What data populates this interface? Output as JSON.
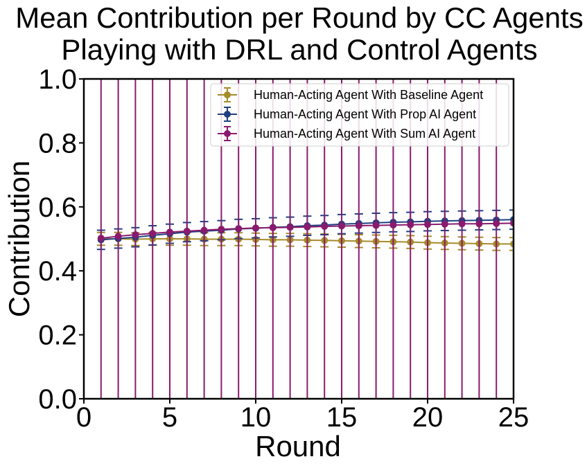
{
  "chart_data": {
    "type": "line",
    "title_lines": [
      "Mean Contribution per Round by CC Agents",
      "Playing with DRL and Control Agents"
    ],
    "xlabel": "Round",
    "ylabel": "Contribution",
    "xlim": [
      0,
      25
    ],
    "ylim": [
      0.0,
      1.0
    ],
    "xticks": [
      0,
      5,
      10,
      15,
      20,
      25
    ],
    "xtick_labels": [
      "0",
      "5",
      "10",
      "15",
      "20",
      "25"
    ],
    "yticks": [
      0.0,
      0.2,
      0.4,
      0.6,
      0.8,
      1.0
    ],
    "ytick_labels": [
      "0.0",
      "0.2",
      "0.4",
      "0.6",
      "0.8",
      "1.0"
    ],
    "grid": false,
    "legend_position": "top-right",
    "x": [
      1,
      2,
      3,
      4,
      5,
      6,
      7,
      8,
      9,
      10,
      11,
      12,
      13,
      14,
      15,
      16,
      17,
      18,
      19,
      20,
      21,
      22,
      23,
      24,
      25
    ],
    "series": [
      {
        "name": "Human-Acting Agent With Baseline Agent",
        "color": "#a68b29",
        "values": [
          0.5,
          0.5,
          0.499,
          0.5,
          0.5,
          0.5,
          0.499,
          0.499,
          0.499,
          0.498,
          0.497,
          0.497,
          0.496,
          0.495,
          0.494,
          0.493,
          0.492,
          0.491,
          0.49,
          0.488,
          0.487,
          0.486,
          0.485,
          0.484,
          0.484
        ],
        "error": [
          0.02,
          0.02,
          0.02,
          0.02,
          0.02,
          0.02,
          0.02,
          0.02,
          0.02,
          0.02,
          0.02,
          0.02,
          0.02,
          0.02,
          0.02,
          0.02,
          0.02,
          0.02,
          0.02,
          0.02,
          0.02,
          0.02,
          0.02,
          0.02,
          0.02
        ]
      },
      {
        "name": "Human-Acting Agent With Prop AI Agent",
        "color": "#1f3f7f",
        "values": [
          0.497,
          0.501,
          0.505,
          0.511,
          0.516,
          0.521,
          0.524,
          0.527,
          0.531,
          0.533,
          0.536,
          0.538,
          0.541,
          0.543,
          0.546,
          0.548,
          0.55,
          0.552,
          0.553,
          0.555,
          0.556,
          0.557,
          0.558,
          0.559,
          0.56
        ],
        "error": [
          0.03,
          0.03,
          0.03,
          0.03,
          0.03,
          0.03,
          0.03,
          0.03,
          0.03,
          0.03,
          0.03,
          0.03,
          0.03,
          0.03,
          0.03,
          0.03,
          0.03,
          0.03,
          0.03,
          0.03,
          0.03,
          0.03,
          0.03,
          0.03,
          0.03
        ]
      },
      {
        "name": "Human-Acting Agent With Sum AI Agent",
        "color": "#8a1a6e",
        "values": [
          0.502,
          0.508,
          0.513,
          0.517,
          0.521,
          0.524,
          0.527,
          0.53,
          0.532,
          0.534,
          0.535,
          0.536,
          0.537,
          0.539,
          0.54,
          0.541,
          0.542,
          0.543,
          0.544,
          0.545,
          0.546,
          0.547,
          0.547,
          0.548,
          0.549
        ],
        "error": [
          0.6,
          0.6,
          0.6,
          0.6,
          0.6,
          0.6,
          0.6,
          0.6,
          0.6,
          0.6,
          0.6,
          0.6,
          0.6,
          0.6,
          0.6,
          0.6,
          0.6,
          0.6,
          0.6,
          0.6,
          0.6,
          0.6,
          0.6,
          0.6,
          0.6
        ]
      }
    ]
  }
}
